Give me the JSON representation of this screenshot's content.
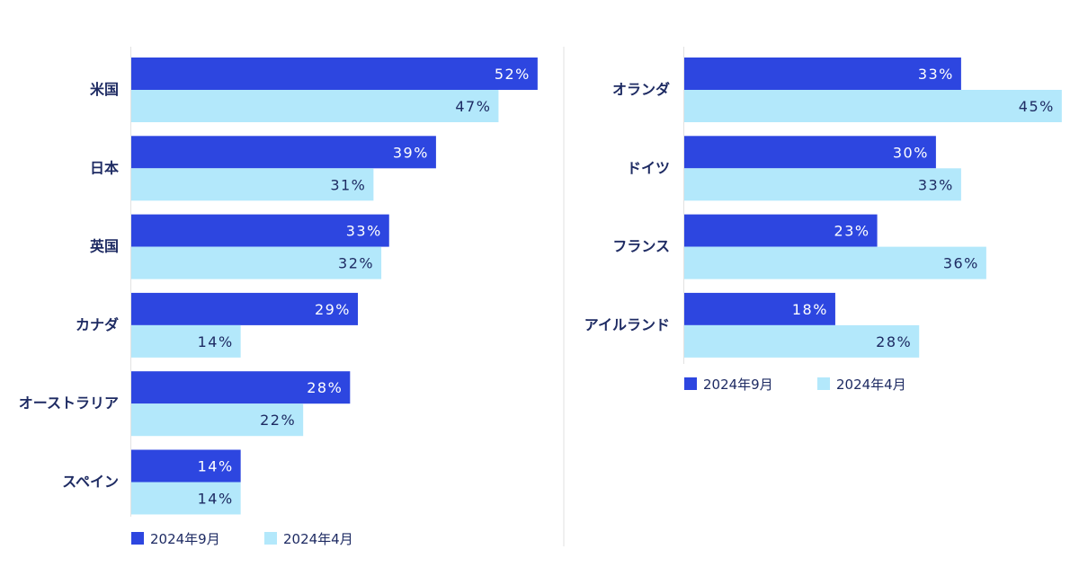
{
  "colors": {
    "series1": "#2d46e0",
    "series2": "#b3e8fb",
    "text": "#1e2b63",
    "axis": "#e2e2e2"
  },
  "chart_data": [
    {
      "type": "bar",
      "orientation": "horizontal",
      "categories": [
        "米国",
        "日本",
        "英国",
        "カナダ",
        "オーストラリア",
        "スペイン"
      ],
      "series": [
        {
          "name": "2024年9月",
          "values": [
            52,
            39,
            33,
            29,
            28,
            14
          ]
        },
        {
          "name": "2024年4月",
          "values": [
            47,
            31,
            32,
            14,
            22,
            14
          ]
        }
      ],
      "value_suffix": "%",
      "legend": "bottom-left",
      "grid": false
    },
    {
      "type": "bar",
      "orientation": "horizontal",
      "categories": [
        "オランダ",
        "ドイツ",
        "フランス",
        "アイルランド"
      ],
      "series": [
        {
          "name": "2024年9月",
          "values": [
            33,
            30,
            23,
            18
          ]
        },
        {
          "name": "2024年4月",
          "values": [
            45,
            33,
            36,
            28
          ]
        }
      ],
      "value_suffix": "%",
      "legend": "bottom-left",
      "grid": false
    }
  ]
}
